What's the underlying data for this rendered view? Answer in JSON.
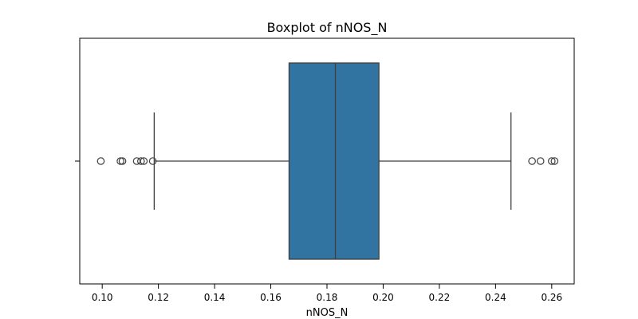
{
  "chart_data": {
    "type": "boxplot",
    "title": "Boxplot of nNOS_N",
    "xlabel": "nNOS_N",
    "ylabel": "",
    "xlim": [
      0.092,
      0.268
    ],
    "xticks": [
      0.1,
      0.12,
      0.14,
      0.16,
      0.18,
      0.2,
      0.22,
      0.24,
      0.26
    ],
    "xtick_labels": [
      "0.10",
      "0.12",
      "0.14",
      "0.16",
      "0.18",
      "0.20",
      "0.22",
      "0.24",
      "0.26"
    ],
    "box": {
      "whisker_low": 0.1185,
      "q1": 0.1665,
      "median": 0.183,
      "q3": 0.1985,
      "whisker_high": 0.2455,
      "outliers": [
        0.0995,
        0.1065,
        0.1072,
        0.1123,
        0.1138,
        0.1148,
        0.118,
        0.253,
        0.256,
        0.26,
        0.261
      ]
    },
    "box_color": "#3274a1",
    "line_color": "#3f3f3f",
    "grid": false
  }
}
